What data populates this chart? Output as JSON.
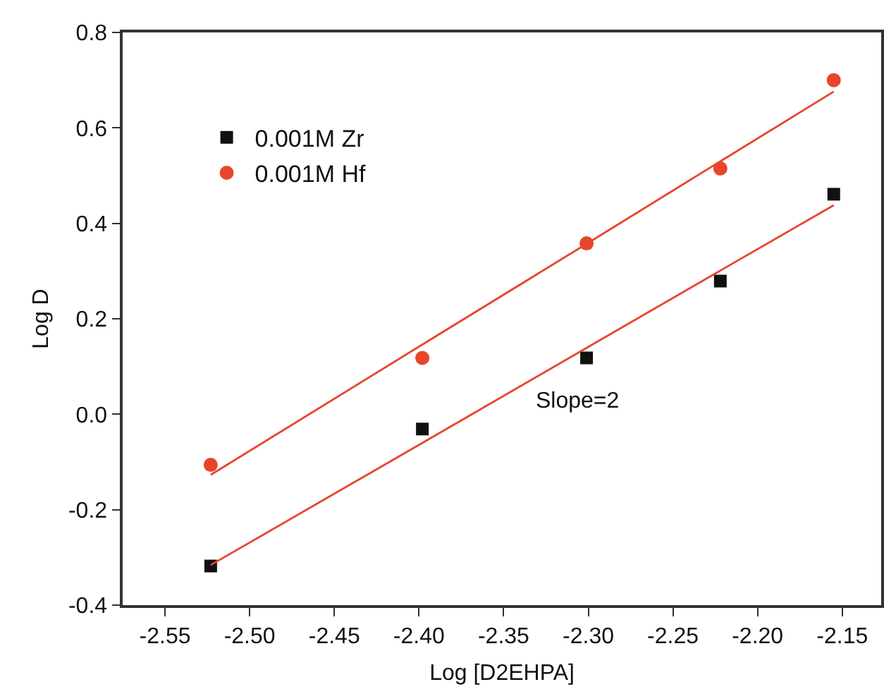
{
  "chart_data": {
    "type": "scatter",
    "xlabel": "Log [D2EHPA]",
    "ylabel": "Log D",
    "x": [
      -2.523,
      -2.398,
      -2.301,
      -2.222,
      -2.155
    ],
    "series": [
      {
        "name": "0.001M Zr",
        "color": "#111111",
        "marker": "square",
        "values": [
          -0.318,
          -0.031,
          0.118,
          0.279,
          0.461
        ]
      },
      {
        "name": "0.001M Hf",
        "color": "#e8452c",
        "marker": "circle",
        "values": [
          -0.106,
          0.118,
          0.358,
          0.515,
          0.7
        ]
      },
      {
        "type": "line",
        "color": "#e8452c",
        "marker": "none",
        "values": [
          -0.127,
          0.146,
          0.357,
          0.53,
          0.676
        ]
      },
      {
        "type": "line",
        "color": "#e8452c",
        "marker": "none",
        "values": [
          -0.316,
          -0.06,
          0.139,
          0.301,
          0.438
        ]
      }
    ],
    "xlim": [
      -2.575,
      -2.127
    ],
    "xticks": [
      -2.55,
      {
        "value": -2.5,
        "label": "-2.50"
      },
      -2.45,
      {
        "value": -2.4,
        "label": "-2.40"
      },
      -2.35,
      {
        "value": -2.3,
        "label": "-2.30"
      },
      -2.25,
      {
        "value": -2.2,
        "label": "-2.20"
      },
      -2.15
    ],
    "ylim": [
      -0.4,
      0.8
    ],
    "yticks": [
      {
        "value": -0.4,
        "label": "-0.4"
      },
      {
        "value": -0.2,
        "label": "-0.2"
      },
      {
        "value": 0,
        "label": "0.0"
      },
      0.2,
      0.4,
      0.6,
      0.8
    ],
    "annotations": [
      "Slope=2"
    ],
    "grid": false,
    "legend": "top left"
  }
}
